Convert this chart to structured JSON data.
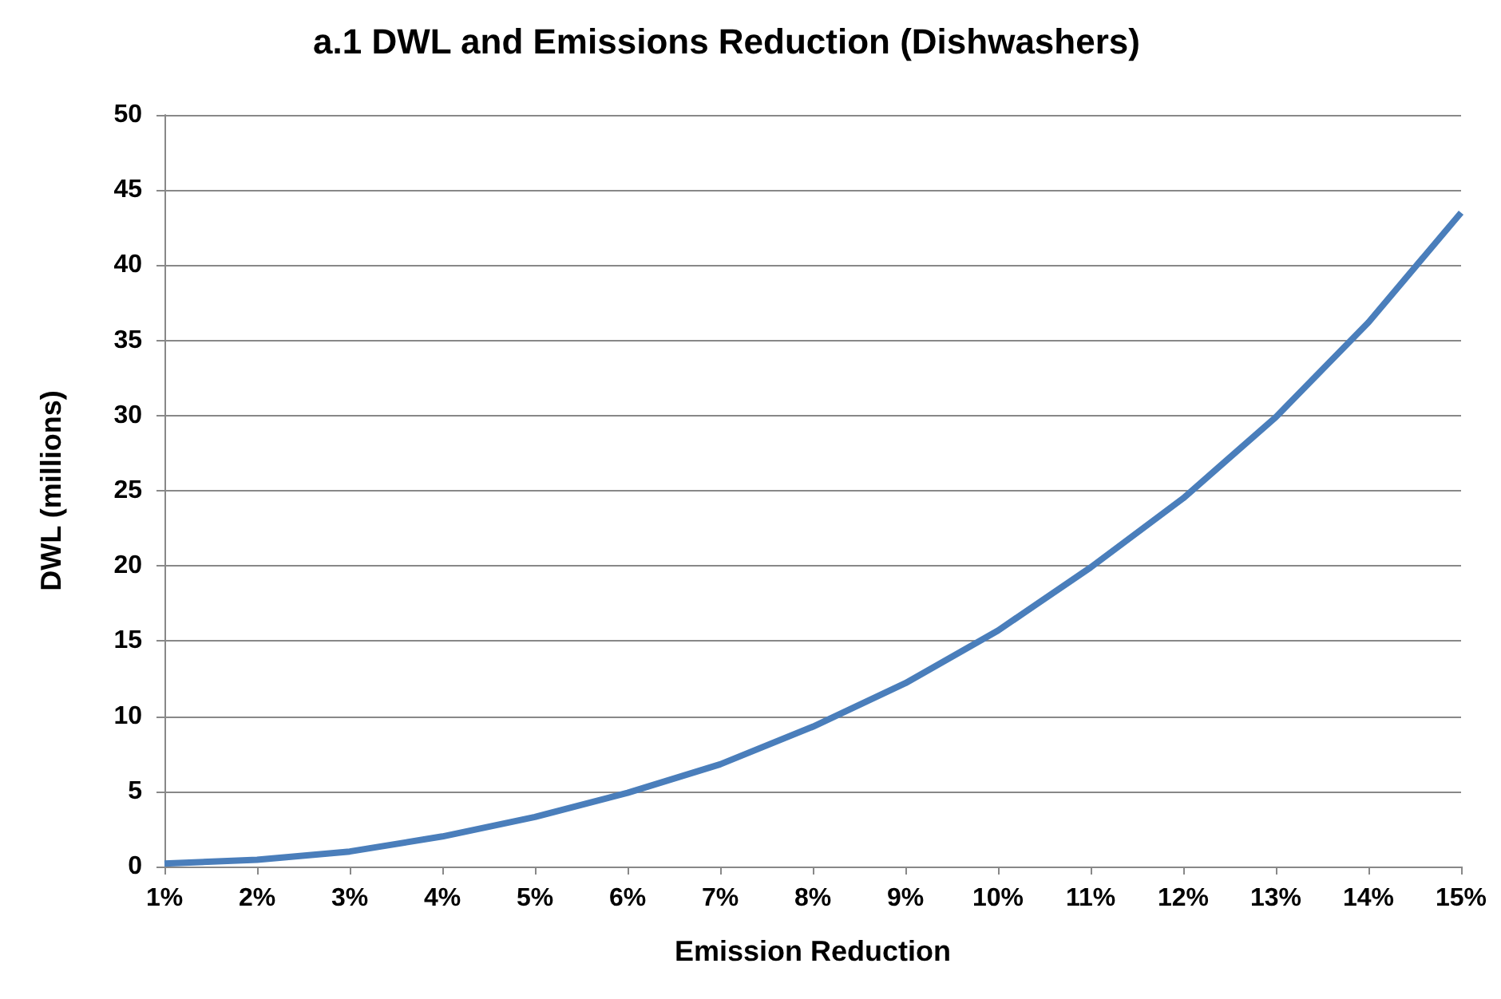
{
  "chart_data": {
    "type": "line",
    "title": "a.1 DWL and Emissions Reduction (Dishwashers)",
    "xlabel": "Emission Reduction",
    "ylabel": "DWL (millions)",
    "categories": [
      "1%",
      "2%",
      "3%",
      "4%",
      "5%",
      "6%",
      "7%",
      "8%",
      "9%",
      "10%",
      "11%",
      "12%",
      "13%",
      "14%",
      "15%"
    ],
    "series": [
      {
        "color": "#4a7ebb",
        "values": [
          0.2,
          0.45,
          1.0,
          2.0,
          3.3,
          4.9,
          6.8,
          9.3,
          12.2,
          15.7,
          19.9,
          24.5,
          29.9,
          36.2,
          43.5
        ]
      }
    ],
    "ylim": [
      0,
      50
    ],
    "yticks": [
      0,
      5,
      10,
      15,
      20,
      25,
      30,
      35,
      40,
      45,
      50
    ],
    "grid": "y",
    "marker": "none",
    "line_style": "solid"
  }
}
